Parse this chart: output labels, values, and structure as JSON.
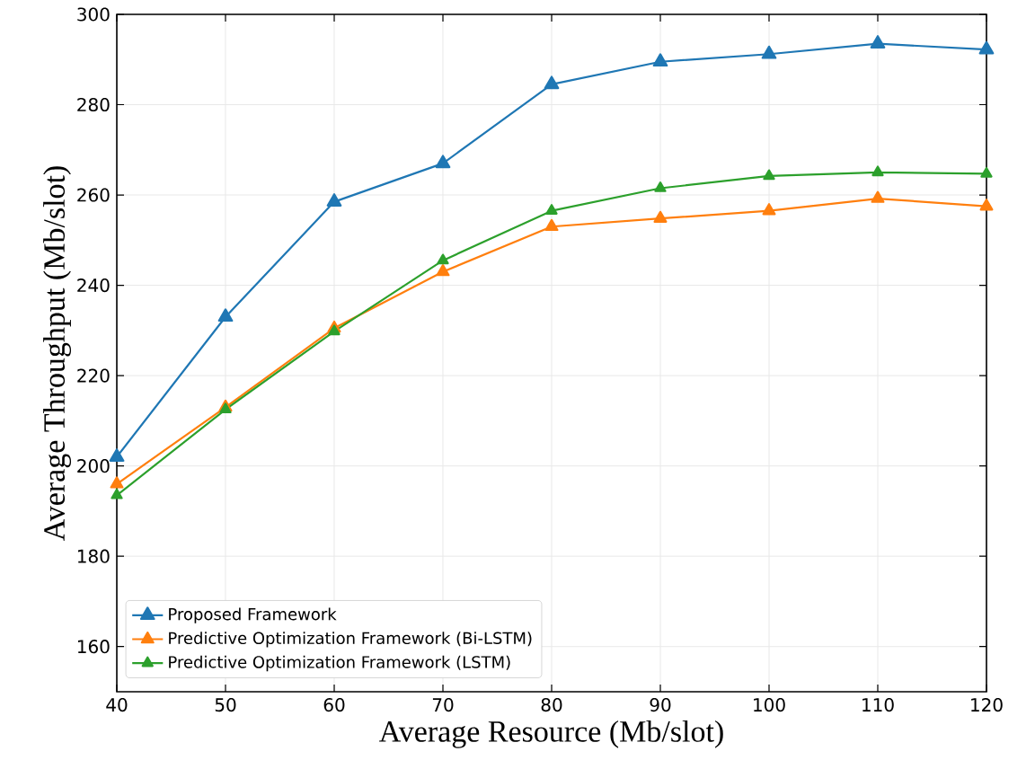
{
  "chart_data": {
    "type": "line",
    "xlabel": "Average Resource (Mb/slot)",
    "ylabel": "Average Throughput (Mb/slot)",
    "x": [
      40,
      50,
      60,
      70,
      80,
      90,
      100,
      110,
      120
    ],
    "series": [
      {
        "name": "Proposed Framework",
        "color": "#1f77b4",
        "values": [
          202,
          233,
          258.5,
          267,
          284.5,
          289.5,
          291.2,
          293.5,
          292.2
        ]
      },
      {
        "name": "Predictive Optimization Framework (Bi-LSTM)",
        "color": "#ff7f0e",
        "values": [
          196,
          213,
          230.5,
          243,
          253,
          254.8,
          256.5,
          259.2,
          257.5
        ]
      },
      {
        "name": "Predictive Optimization Framework (LSTM)",
        "color": "#2ca02c",
        "values": [
          193.5,
          212.5,
          229.8,
          245.5,
          256.5,
          261.5,
          264.2,
          265,
          264.7
        ]
      }
    ],
    "xlim": [
      40,
      120
    ],
    "ylim": [
      150,
      300
    ],
    "xticks": [
      40,
      50,
      60,
      70,
      80,
      90,
      100,
      110,
      120
    ],
    "yticks": [
      160,
      180,
      200,
      220,
      240,
      260,
      280,
      300
    ],
    "grid": true,
    "legend": "bottom left",
    "marker": "triangle",
    "line_style": "solid"
  }
}
